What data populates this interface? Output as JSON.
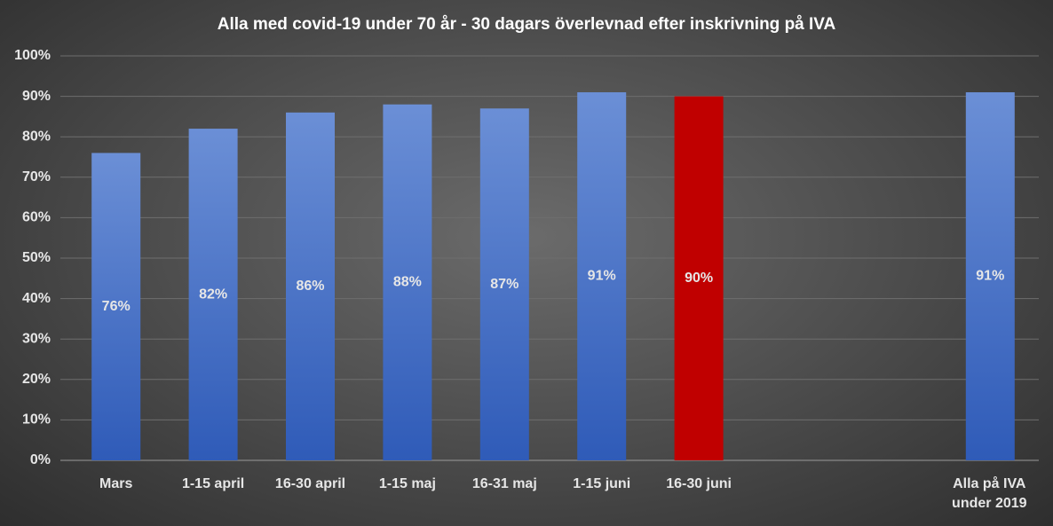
{
  "chart_data": {
    "type": "bar",
    "title": "Alla med covid-19 under 70 år - 30 dagars överlevnad efter inskrivning på IVA",
    "categories": [
      "Mars",
      "1-15 april",
      "16-30 april",
      "1-15 maj",
      "16-31 maj",
      "1-15 juni",
      "16-30 juni",
      null,
      null,
      "Alla på IVA under 2019"
    ],
    "values": [
      76,
      82,
      86,
      88,
      87,
      91,
      90,
      null,
      null,
      91
    ],
    "value_labels": [
      "76%",
      "82%",
      "86%",
      "88%",
      "87%",
      "91%",
      "90%",
      null,
      null,
      "91%"
    ],
    "colors": [
      "#4a74c9",
      "#4a74c9",
      "#4a74c9",
      "#4a74c9",
      "#4a74c9",
      "#4a74c9",
      "#c00000",
      null,
      null,
      "#4a74c9"
    ],
    "ylim": [
      0,
      100
    ],
    "yticks": [
      {
        "value": 0,
        "label": "0%"
      },
      {
        "value": 10,
        "label": "10%"
      },
      {
        "value": 20,
        "label": "20%"
      },
      {
        "value": 30,
        "label": "30%"
      },
      {
        "value": 40,
        "label": "40%"
      },
      {
        "value": 50,
        "label": "50%"
      },
      {
        "value": 60,
        "label": "60%"
      },
      {
        "value": 70,
        "label": "70%"
      },
      {
        "value": 80,
        "label": "80%"
      },
      {
        "value": 90,
        "label": "90%"
      },
      {
        "value": 100,
        "label": "100%"
      }
    ],
    "grid": true
  }
}
